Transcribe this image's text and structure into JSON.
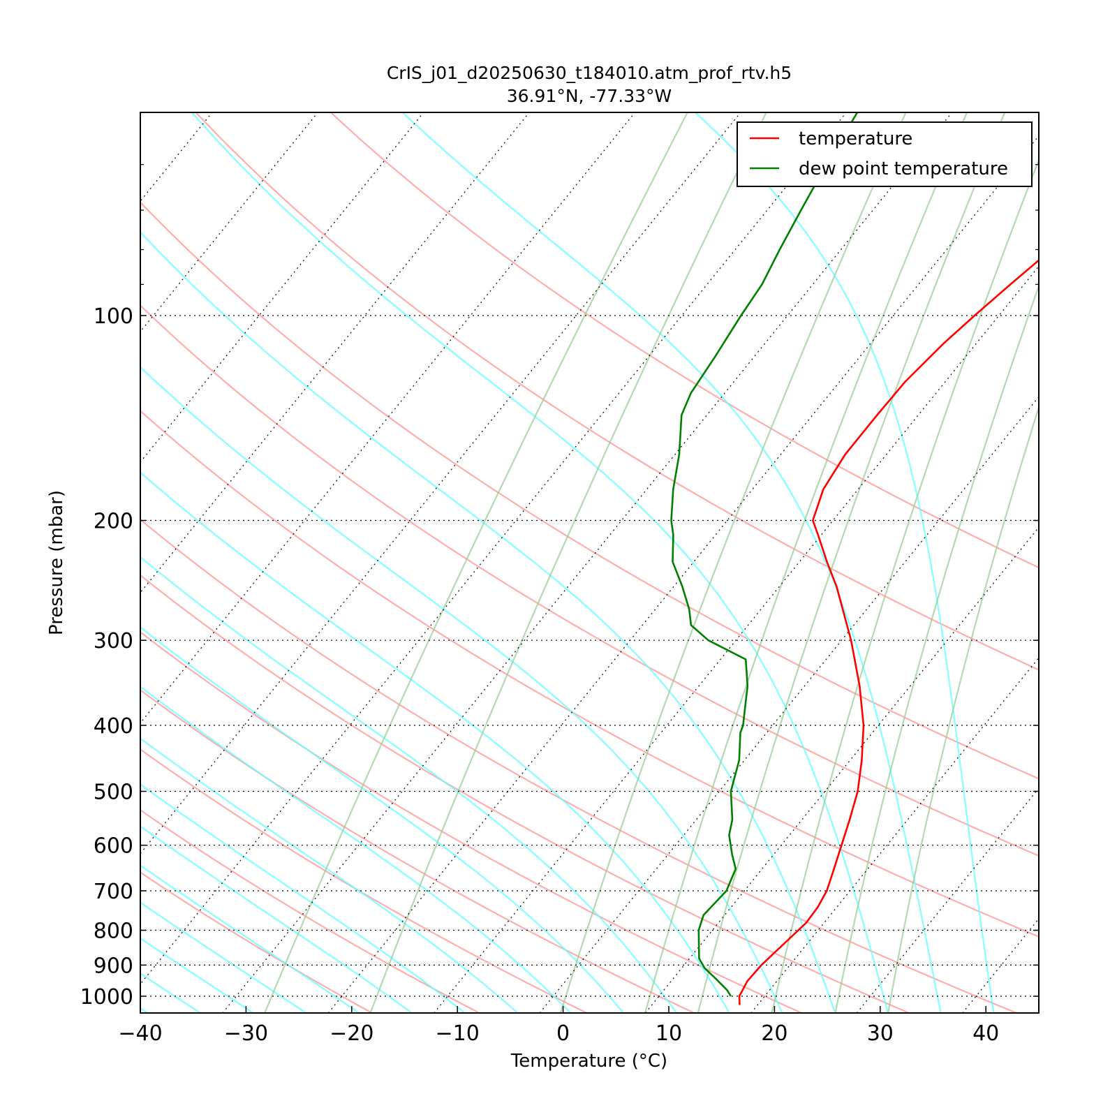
{
  "chart_data": {
    "type": "line",
    "title": "CrIS_j01_d20250630_t184010.atm_prof_rtv.h5",
    "subtitle": "36.91°N, -77.33°W",
    "xlabel": "Temperature (°C)",
    "ylabel": "Pressure (mbar)",
    "xlim": [
      -40,
      45
    ],
    "ylim": [
      1050,
      50
    ],
    "y_scale": "log",
    "y_inverted": true,
    "skew": true,
    "x_ticks": [
      "−40",
      "−30",
      "−20",
      "−10",
      "0",
      "10",
      "20",
      "30",
      "40"
    ],
    "x_tick_values": [
      -40,
      -30,
      -20,
      -10,
      0,
      10,
      20,
      30,
      40
    ],
    "y_ticks": [
      "100",
      "200",
      "300",
      "400",
      "500",
      "600",
      "700",
      "800",
      "900",
      "1000"
    ],
    "y_tick_values": [
      100,
      200,
      300,
      400,
      500,
      600,
      700,
      800,
      900,
      1000
    ],
    "grid": "horizontal dotted at labeled pressures; skewed dotted isotherms",
    "legend_position": "top-right",
    "series": [
      {
        "name": "temperature",
        "color": "#ff0000",
        "points": [
          {
            "p": 1030,
            "t": 18.3
          },
          {
            "p": 1000,
            "t": 17.6
          },
          {
            "p": 950,
            "t": 17.2
          },
          {
            "p": 900,
            "t": 17.3
          },
          {
            "p": 850,
            "t": 17.7
          },
          {
            "p": 780,
            "t": 18.3
          },
          {
            "p": 740,
            "t": 18.2
          },
          {
            "p": 700,
            "t": 17.8
          },
          {
            "p": 650,
            "t": 16.8
          },
          {
            "p": 600,
            "t": 15.7
          },
          {
            "p": 550,
            "t": 14.5
          },
          {
            "p": 500,
            "t": 13.1
          },
          {
            "p": 450,
            "t": 11.1
          },
          {
            "p": 400,
            "t": 8.6
          },
          {
            "p": 350,
            "t": 5.2
          },
          {
            "p": 300,
            "t": 0.9
          },
          {
            "p": 250,
            "t": -4.6
          },
          {
            "p": 230,
            "t": -7.4
          },
          {
            "p": 210,
            "t": -10.3
          },
          {
            "p": 200,
            "t": -11.9
          },
          {
            "p": 180,
            "t": -13.3
          },
          {
            "p": 160,
            "t": -13.9
          },
          {
            "p": 140,
            "t": -13.9
          },
          {
            "p": 125,
            "t": -13.8
          },
          {
            "p": 110,
            "t": -13.1
          },
          {
            "p": 100,
            "t": -12.3
          },
          {
            "p": 90,
            "t": -11.3
          },
          {
            "p": 80,
            "t": -10.1
          },
          {
            "p": 70,
            "t": -8.5
          },
          {
            "p": 60,
            "t": -6.3
          },
          {
            "p": 52,
            "t": -3.8
          },
          {
            "p": 50,
            "t": -2.9
          }
        ]
      },
      {
        "name": "dew point temperature",
        "color": "#008000",
        "points": [
          {
            "p": 1000,
            "t": 16.8
          },
          {
            "p": 980,
            "t": 16.0
          },
          {
            "p": 940,
            "t": 13.9
          },
          {
            "p": 910,
            "t": 12.2
          },
          {
            "p": 880,
            "t": 10.9
          },
          {
            "p": 800,
            "t": 8.7
          },
          {
            "p": 760,
            "t": 8.0
          },
          {
            "p": 700,
            "t": 8.3
          },
          {
            "p": 650,
            "t": 7.5
          },
          {
            "p": 620,
            "t": 6.1
          },
          {
            "p": 580,
            "t": 4.3
          },
          {
            "p": 550,
            "t": 3.4
          },
          {
            "p": 500,
            "t": 1.1
          },
          {
            "p": 450,
            "t": -0.5
          },
          {
            "p": 410,
            "t": -2.5
          },
          {
            "p": 400,
            "t": -2.8
          },
          {
            "p": 380,
            "t": -3.8
          },
          {
            "p": 350,
            "t": -5.4
          },
          {
            "p": 320,
            "t": -7.6
          },
          {
            "p": 300,
            "t": -12.6
          },
          {
            "p": 285,
            "t": -15.4
          },
          {
            "p": 270,
            "t": -16.8
          },
          {
            "p": 250,
            "t": -19.2
          },
          {
            "p": 230,
            "t": -22.0
          },
          {
            "p": 210,
            "t": -24.0
          },
          {
            "p": 200,
            "t": -25.3
          },
          {
            "p": 180,
            "t": -27.5
          },
          {
            "p": 160,
            "t": -29.6
          },
          {
            "p": 140,
            "t": -32.4
          },
          {
            "p": 130,
            "t": -33.2
          },
          {
            "p": 115,
            "t": -33.7
          },
          {
            "p": 100,
            "t": -34.4
          },
          {
            "p": 90,
            "t": -34.8
          },
          {
            "p": 80,
            "t": -35.8
          },
          {
            "p": 70,
            "t": -36.8
          },
          {
            "p": 60,
            "t": -37.9
          },
          {
            "p": 50,
            "t": -39.0
          }
        ]
      }
    ],
    "background": {
      "dry_adiabats_color": "#ff9999",
      "moist_adiabats_color": "#66ffff",
      "mixing_ratio_color": "#99cc99",
      "isotherms_color": "#000000",
      "dry_adiabat_theta_c": [
        -20,
        -10,
        0,
        10,
        20,
        30,
        40,
        60,
        80,
        100,
        130,
        160
      ],
      "moist_adiabat_start_c": [
        -37,
        -32,
        -27,
        -22,
        -17,
        -12,
        -7,
        -2,
        3,
        8,
        13,
        18,
        23,
        28,
        33,
        38,
        43
      ],
      "mixing_ratio_start_c": [
        -26,
        -16,
        2,
        10,
        15,
        22,
        28,
        33
      ]
    }
  }
}
